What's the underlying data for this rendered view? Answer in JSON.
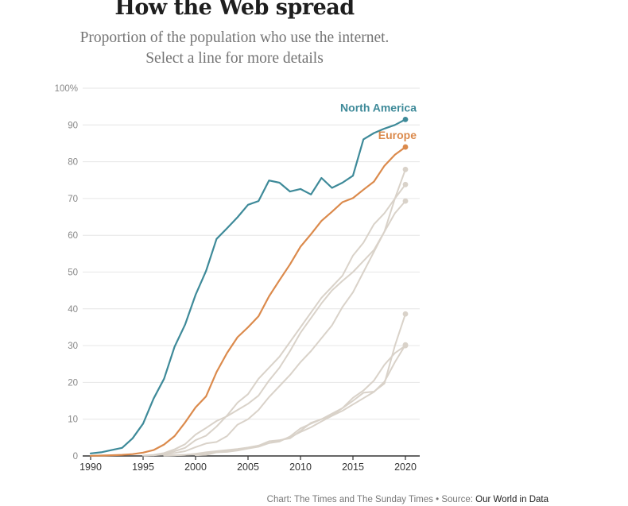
{
  "header": {
    "title": "How the Web spread",
    "subtitle_line1": "Proportion of the population who use the internet.",
    "subtitle_line2": "Select a line for more details"
  },
  "footer": {
    "credit": "Chart: The Times and The Sunday Times",
    "separator": " • ",
    "source_prefix": "Source: ",
    "source_link": "Our World in Data"
  },
  "colors": {
    "north_america": "#3e8a99",
    "europe": "#db8a4c",
    "other": "#d9d2c9",
    "grid": "#e6e6e6",
    "axis": "#333333",
    "tick_label": "#888888"
  },
  "chart_data": {
    "type": "line",
    "xlim": [
      1990,
      2020
    ],
    "ylim": [
      0,
      100
    ],
    "x_ticks": [
      1990,
      1995,
      2000,
      2005,
      2010,
      2015,
      2020
    ],
    "x_tick_labels": [
      "1990",
      "1995",
      "2000",
      "2005",
      "2010",
      "2015",
      "2020"
    ],
    "y_ticks": [
      0,
      10,
      20,
      30,
      40,
      50,
      60,
      70,
      80,
      90,
      100
    ],
    "y_tick_labels": [
      "0",
      "10",
      "20",
      "30",
      "40",
      "50",
      "60",
      "70",
      "80",
      "90",
      "100%"
    ],
    "grid": true,
    "legend": "direct-labels",
    "series": [
      {
        "name": "North America",
        "color": "#3e8a99",
        "highlight": true,
        "x": [
          1990,
          1991,
          1992,
          1993,
          1994,
          1995,
          1996,
          1997,
          1998,
          1999,
          2000,
          2001,
          2002,
          2003,
          2004,
          2005,
          2006,
          2007,
          2008,
          2009,
          2010,
          2011,
          2012,
          2013,
          2014,
          2015,
          2016,
          2017,
          2018,
          2019,
          2020
        ],
        "y": [
          0.7,
          1.0,
          1.6,
          2.2,
          4.8,
          8.8,
          15.6,
          21.0,
          29.7,
          35.7,
          43.8,
          50.3,
          59.0,
          61.9,
          64.9,
          68.3,
          69.3,
          74.9,
          74.3,
          71.9,
          72.6,
          71.1,
          75.6,
          72.9,
          74.3,
          76.2,
          86.1,
          87.8,
          89.0,
          90.0,
          91.5
        ]
      },
      {
        "name": "Europe",
        "color": "#db8a4c",
        "highlight": true,
        "x": [
          1990,
          1991,
          1992,
          1993,
          1994,
          1995,
          1996,
          1997,
          1998,
          1999,
          2000,
          2001,
          2002,
          2003,
          2004,
          2005,
          2006,
          2007,
          2008,
          2009,
          2010,
          2011,
          2012,
          2013,
          2014,
          2015,
          2016,
          2017,
          2018,
          2019,
          2020
        ],
        "y": [
          0.05,
          0.1,
          0.2,
          0.3,
          0.5,
          0.9,
          1.6,
          3.1,
          5.4,
          9.1,
          13.2,
          16.2,
          22.8,
          28.0,
          32.3,
          35.0,
          38.0,
          43.4,
          47.8,
          52.1,
          56.9,
          60.3,
          63.9,
          66.4,
          69.0,
          70.1,
          72.4,
          74.6,
          78.9,
          81.9,
          84.0
        ]
      },
      {
        "name": "",
        "color": "#d9d2c9",
        "highlight": false,
        "x": [
          1995,
          1996,
          1997,
          1998,
          1999,
          2000,
          2001,
          2002,
          2003,
          2004,
          2005,
          2006,
          2007,
          2008,
          2009,
          2010,
          2011,
          2012,
          2013,
          2014,
          2015,
          2016,
          2017,
          2018,
          2019,
          2020
        ],
        "y": [
          0.1,
          0.3,
          0.8,
          1.8,
          3.2,
          5.8,
          7.6,
          9.5,
          10.8,
          12.5,
          14.2,
          16.4,
          20.5,
          24.0,
          28.5,
          33.5,
          37.5,
          41.5,
          45.0,
          47.6,
          50.0,
          53.0,
          56.0,
          61.0,
          66.0,
          69.3
        ]
      },
      {
        "name": "",
        "color": "#d9d2c9",
        "highlight": false,
        "x": [
          1996,
          1997,
          1998,
          1999,
          2000,
          2001,
          2002,
          2003,
          2004,
          2005,
          2006,
          2007,
          2008,
          2009,
          2010,
          2011,
          2012,
          2013,
          2014,
          2015,
          2016,
          2017,
          2018,
          2019,
          2020
        ],
        "y": [
          0.2,
          0.6,
          1.3,
          2.2,
          4.3,
          5.5,
          8.0,
          11.0,
          14.5,
          16.8,
          21.0,
          24.0,
          27.0,
          31.0,
          35.0,
          39.0,
          43.0,
          46.0,
          49.0,
          54.5,
          58.0,
          63.0,
          66.0,
          70.0,
          73.8
        ]
      },
      {
        "name": "",
        "color": "#d9d2c9",
        "highlight": false,
        "x": [
          1995,
          1996,
          1997,
          1998,
          1999,
          2000,
          2001,
          2002,
          2003,
          2004,
          2005,
          2006,
          2007,
          2008,
          2009,
          2010,
          2011,
          2012,
          2013,
          2014,
          2015,
          2016,
          2017,
          2018,
          2019,
          2020
        ],
        "y": [
          0.1,
          0.2,
          0.4,
          0.8,
          1.3,
          2.4,
          3.4,
          3.8,
          5.4,
          8.5,
          10.0,
          12.5,
          16.0,
          19.0,
          22.0,
          25.5,
          28.5,
          32.0,
          35.5,
          40.5,
          44.5,
          50.0,
          55.5,
          61.0,
          70.0,
          77.9
        ]
      },
      {
        "name": "",
        "color": "#d9d2c9",
        "highlight": false,
        "x": [
          1997,
          1998,
          1999,
          2000,
          2001,
          2002,
          2003,
          2004,
          2005,
          2006,
          2007,
          2008,
          2009,
          2010,
          2011,
          2012,
          2013,
          2014,
          2015,
          2016,
          2017,
          2018,
          2019,
          2020
        ],
        "y": [
          0.1,
          0.2,
          0.3,
          0.6,
          1.0,
          1.3,
          1.6,
          1.9,
          2.3,
          2.8,
          3.5,
          4.2,
          5.1,
          6.5,
          7.8,
          9.4,
          10.9,
          12.3,
          14.0,
          15.7,
          17.4,
          20.2,
          25.5,
          30.2
        ]
      },
      {
        "name": "",
        "color": "#d9d2c9",
        "highlight": false,
        "x": [
          1997,
          1998,
          1999,
          2000,
          2001,
          2002,
          2003,
          2004,
          2005,
          2006,
          2007,
          2008,
          2009,
          2010,
          2011,
          2012,
          2013,
          2014,
          2015,
          2016,
          2017,
          2018,
          2019,
          2020
        ],
        "y": [
          0.1,
          0.2,
          0.3,
          0.5,
          0.7,
          1.0,
          1.3,
          1.7,
          2.2,
          2.8,
          4.0,
          4.3,
          4.8,
          6.8,
          9.0,
          10.0,
          11.0,
          13.0,
          15.8,
          17.8,
          20.5,
          24.8,
          28.0,
          30.0
        ]
      },
      {
        "name": "",
        "color": "#d9d2c9",
        "highlight": false,
        "x": [
          2000,
          2001,
          2002,
          2003,
          2004,
          2005,
          2006,
          2007,
          2008,
          2009,
          2010,
          2011,
          2012,
          2013,
          2014,
          2015,
          2016,
          2017,
          2018,
          2019,
          2020
        ],
        "y": [
          0.2,
          0.3,
          1.0,
          1.1,
          1.5,
          2.0,
          2.5,
          3.5,
          3.9,
          5.3,
          7.5,
          8.8,
          10.0,
          11.5,
          13.0,
          15.0,
          17.2,
          17.5,
          19.7,
          30.0,
          38.6
        ]
      }
    ]
  }
}
